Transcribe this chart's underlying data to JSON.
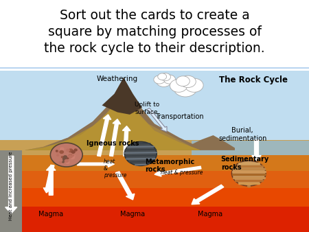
{
  "title_line1": "Sort out the cards to create a",
  "title_line2": "square by matching processes of",
  "title_line3": "the rock cycle to their description.",
  "title_fontsize": 13.5,
  "title_font": "Comic Sans MS",
  "bg_color": "#ffffff",
  "text_color": "#000000",
  "labels": {
    "rock_cycle_title": "The Rock Cycle",
    "weathering": "Weathering",
    "uplift": "Uplift to\nsurface",
    "transportation": "Transportation",
    "burial": "Burial,\nsedimentation",
    "igneous": "Igneous rocks",
    "metamorphic": "Metamorphic\nrocks",
    "sedimentary": "Sedimentary\nrocks",
    "heat_pressure1": "heat\n&\npressure",
    "heat_pressure2": "heat & pressure",
    "heat_increased": "Heat and increased pressure",
    "magma1": "Magma",
    "magma2": "Magma",
    "magma3": "Magma"
  },
  "sky_color": "#c0ddf0",
  "sea_color": "#90c0e0",
  "ground_colors": [
    "#c8a055",
    "#d4781a",
    "#e06010",
    "#e84800",
    "#dd2200"
  ],
  "mountain_color": "#7a6040",
  "mountain_strata": [
    "#b89835",
    "#a07828"
  ],
  "dark_peak": "#4a3828",
  "left_panel_color": "#909090",
  "white_arrow": "#ffffff",
  "outline_arrow": "#cccccc"
}
